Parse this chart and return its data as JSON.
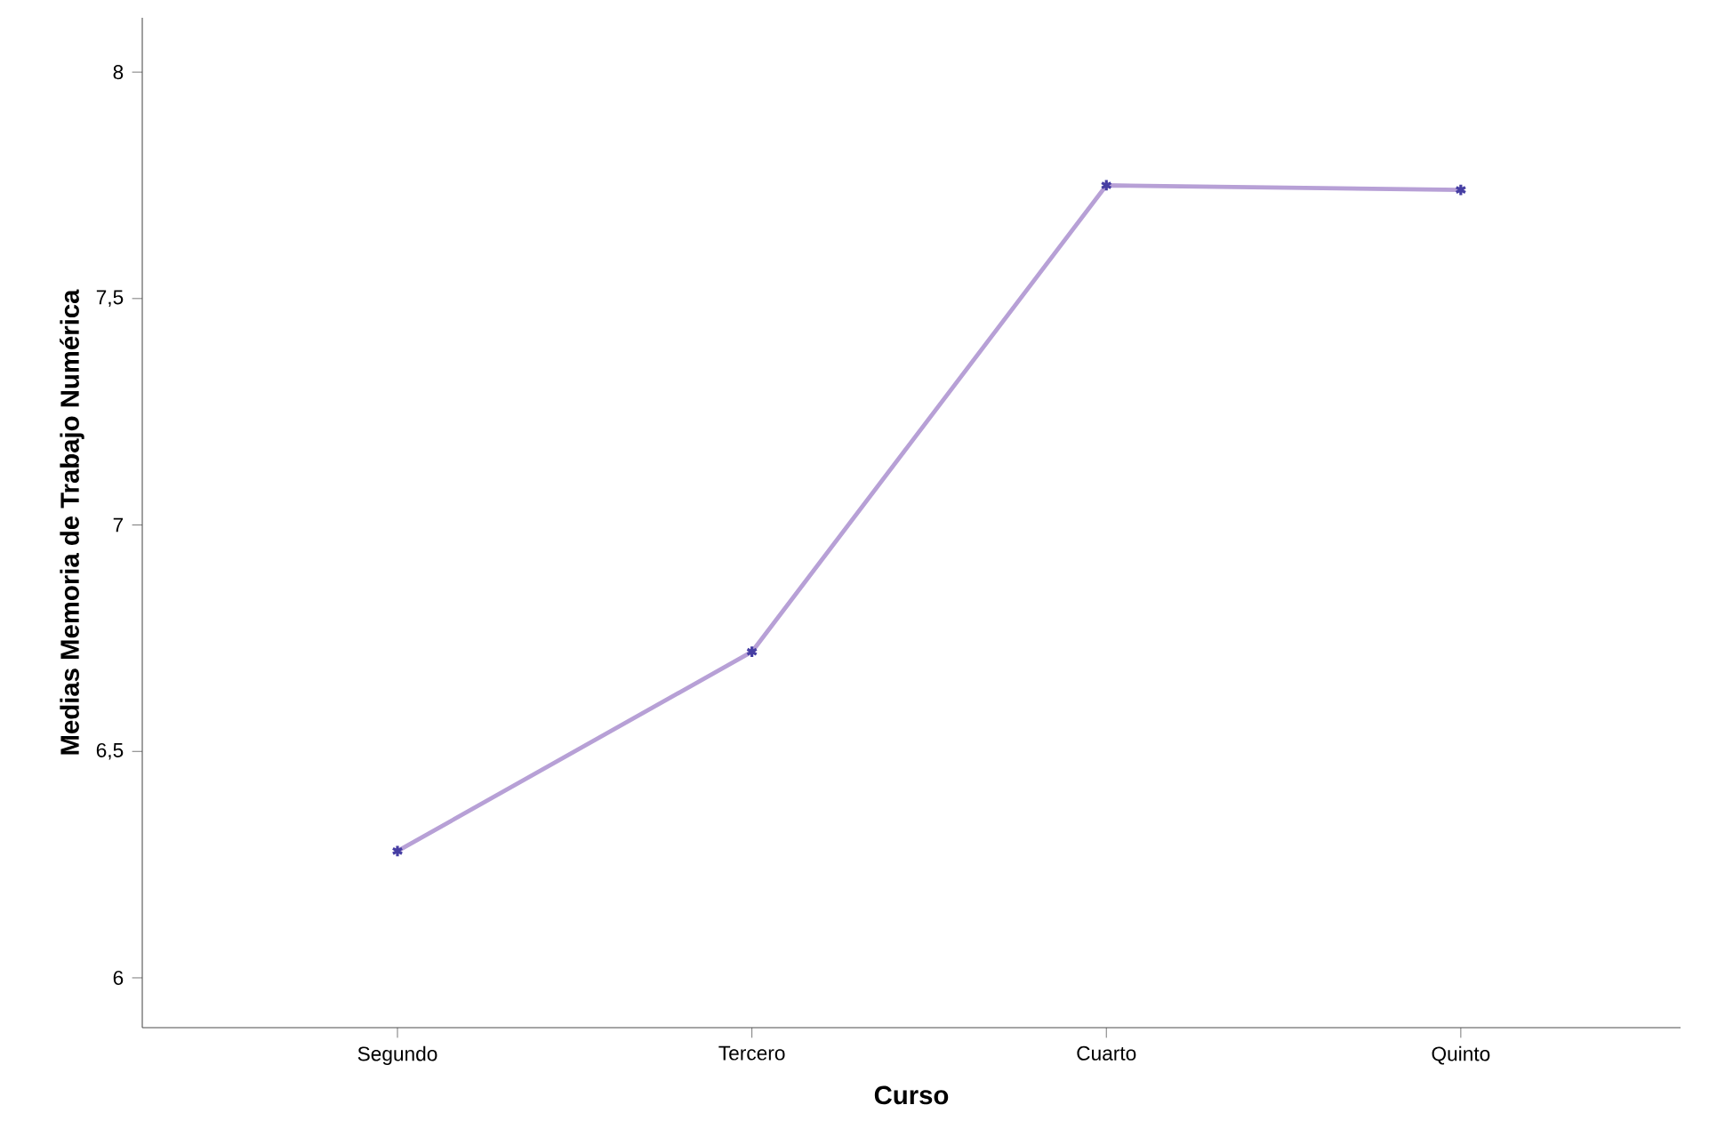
{
  "chart_data": {
    "type": "line",
    "xlabel": "Curso",
    "ylabel": "Medias Memoria de Trabajo Numérica",
    "categories": [
      "Segundo",
      "Tercero",
      "Cuarto",
      "Quinto"
    ],
    "series": [
      {
        "color": "#b7a0d6",
        "values": [
          6.28,
          6.72,
          7.75,
          7.74
        ]
      }
    ],
    "ylim": [
      5.89,
      8.12
    ],
    "yticks": [
      6,
      {
        "value": 6.5,
        "label": "6,5"
      },
      7,
      {
        "value": 7.5,
        "label": "7,5"
      },
      8
    ],
    "grid": false,
    "marker": "cross",
    "line_style": "solid"
  }
}
